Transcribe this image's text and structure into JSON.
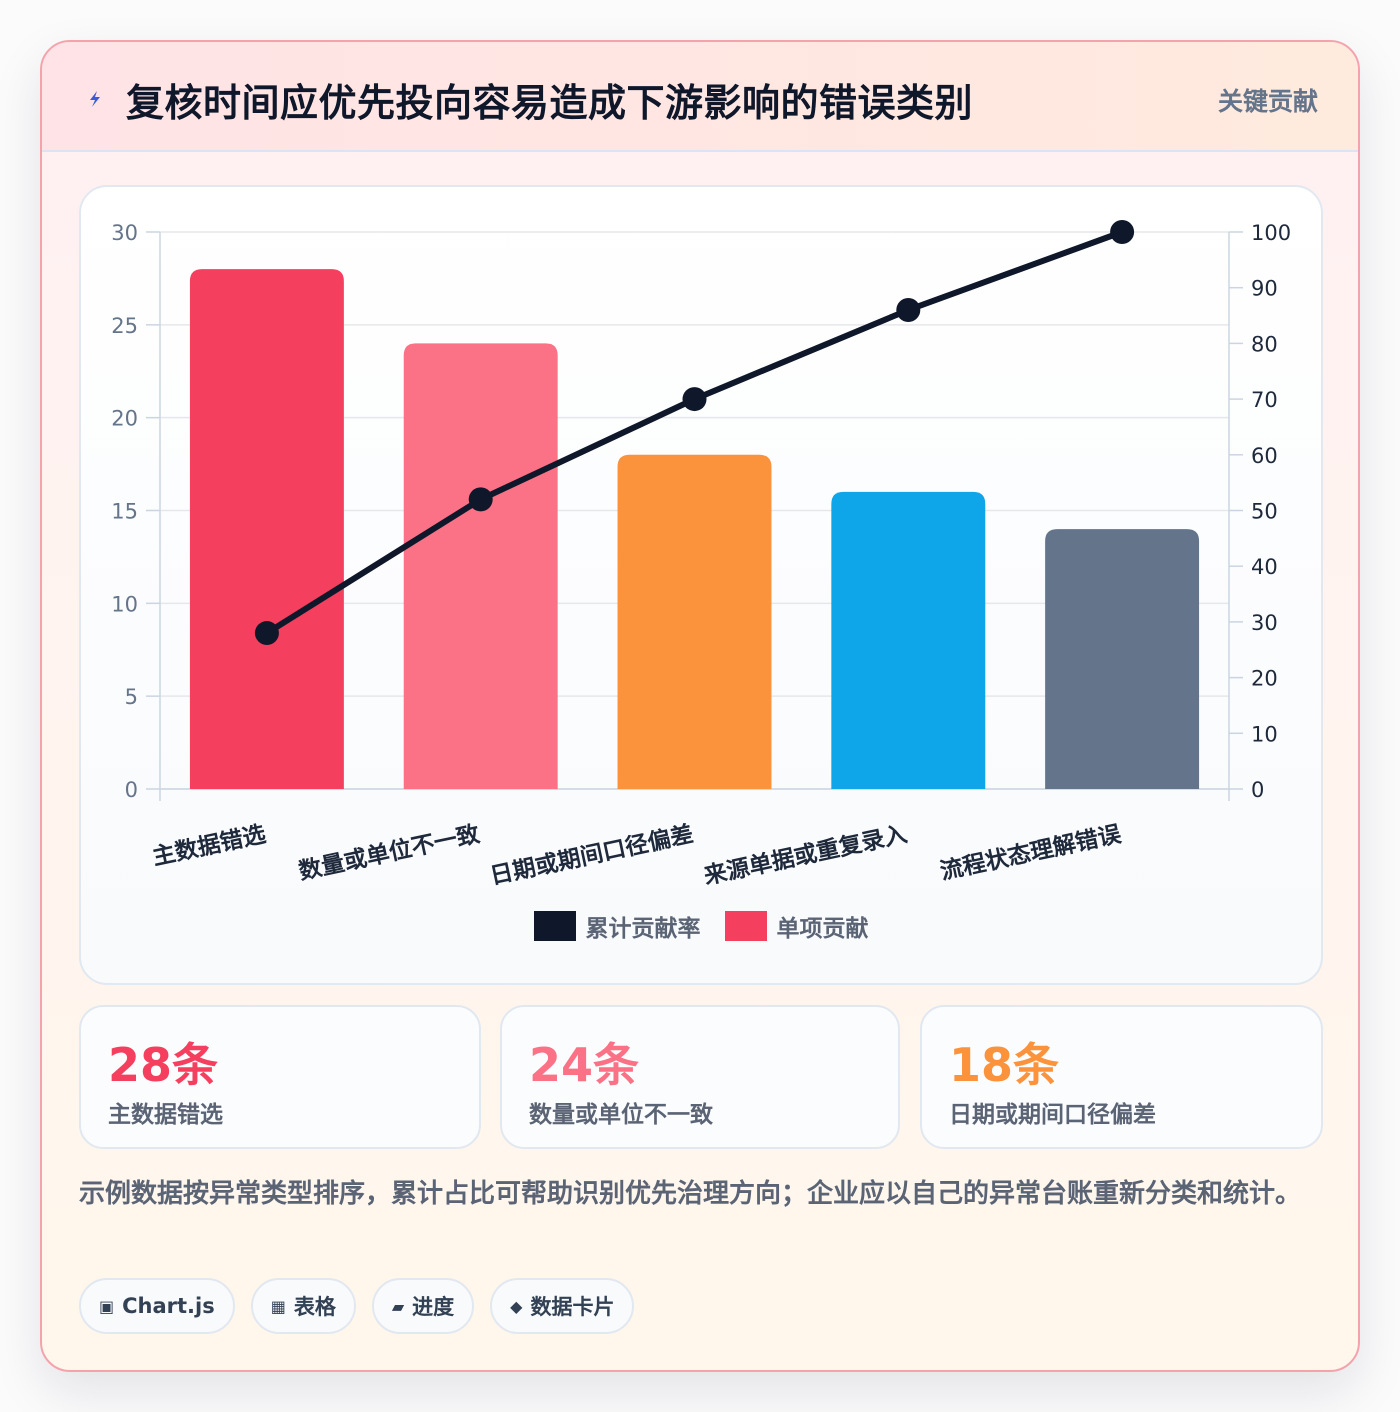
{
  "header": {
    "title": "复核时间应优先投向容易造成下游影响的错误类别",
    "badge": "关键贡献",
    "icon": "lightning-bolt-icon",
    "icon_color": "#3b5bdb"
  },
  "chart_data": {
    "type": "bar",
    "categories": [
      "主数据错选",
      "数量或单位不一致",
      "日期或期间口径偏差",
      "来源单据或重复录入",
      "流程状态理解错误"
    ],
    "series": [
      {
        "name": "单项贡献",
        "type": "bar",
        "axis": "left",
        "values": [
          28,
          24,
          18,
          16,
          14
        ],
        "colors": [
          "#f43f5e",
          "#fb7185",
          "#fb923c",
          "#0ea5e9",
          "#64748b"
        ]
      },
      {
        "name": "累计贡献率",
        "type": "line",
        "axis": "right",
        "values": [
          28,
          52,
          70,
          86,
          100
        ],
        "color": "#0f172a"
      }
    ],
    "y_left": {
      "min": 0,
      "max": 30,
      "ticks": [
        0,
        5,
        10,
        15,
        20,
        25,
        30
      ]
    },
    "y_right": {
      "min": 0,
      "max": 100,
      "ticks": [
        0,
        10,
        20,
        30,
        40,
        50,
        60,
        70,
        80,
        90,
        100
      ]
    },
    "grid": true,
    "legend": {
      "placement": "bottom",
      "entries": [
        {
          "label": "累计贡献率",
          "color": "#0f172a"
        },
        {
          "label": "单项贡献",
          "color": "#f43f5e"
        }
      ]
    }
  },
  "stats": [
    {
      "value": "28条",
      "label": "主数据错选",
      "color": "#f43f5e"
    },
    {
      "value": "24条",
      "label": "数量或单位不一致",
      "color": "#fb7185"
    },
    {
      "value": "18条",
      "label": "日期或期间口径偏差",
      "color": "#fb923c"
    }
  ],
  "note": "示例数据按异常类型排序，累计占比可帮助识别优先治理方向；企业应以自己的异常台账重新分类和统计。",
  "tags": [
    {
      "icon": "▣",
      "label": "Chart.js"
    },
    {
      "icon": "▦",
      "label": "表格"
    },
    {
      "icon": "▰",
      "label": "进度"
    },
    {
      "icon": "◆",
      "label": "数据卡片"
    }
  ]
}
